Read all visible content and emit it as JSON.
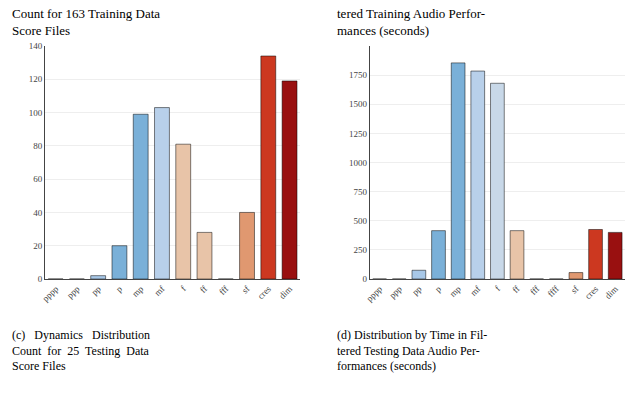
{
  "chart_data": [
    {
      "type": "bar",
      "title": "Count for 163 Training Data\nScore Files",
      "annotations": [
        "(c)   Dynamics   Distribution\nCount  for  25  Testing  Data\nScore Files"
      ],
      "categories": [
        "pppp",
        "ppp",
        "pp",
        "p",
        "mp",
        "mf",
        "f",
        "ff",
        "fff",
        "sf",
        "cres",
        "dim"
      ],
      "values": [
        0,
        0,
        2,
        20,
        99,
        103,
        81,
        28,
        0,
        40,
        134,
        119
      ],
      "colors": [
        "#a8c8e8",
        "#a8c8e8",
        "#a8c8e8",
        "#7ab0d8",
        "#7ab0d8",
        "#b8d0ea",
        "#e8c4a8",
        "#e8c4a8",
        "#e8c4a8",
        "#e09870",
        "#cc3820",
        "#991010"
      ],
      "ylim": [
        0,
        140
      ],
      "yticks": [
        0,
        20,
        40,
        60,
        80,
        100,
        120,
        140
      ],
      "grid": true
    },
    {
      "type": "bar",
      "title": "tered Training Audio Perfor-\nmances (seconds)",
      "annotations": [
        "(d) Distribution by Time in Fil-\ntered Testing Data Audio Per-\nformances (seconds)"
      ],
      "categories": [
        "pppp",
        "ppp",
        "pp",
        "p",
        "mp",
        "mf",
        "f",
        "ff",
        "fff",
        "ffff",
        "sf",
        "cres",
        "dim"
      ],
      "values": [
        0,
        0,
        75,
        415,
        1855,
        1785,
        1680,
        415,
        0,
        0,
        55,
        425,
        400
      ],
      "colors": [
        "#a8c8e8",
        "#a8c8e8",
        "#a8c8e8",
        "#7ab0d8",
        "#7ab0d8",
        "#b8d0ea",
        "#c8d8e8",
        "#e8c4a8",
        "#c8d8e8",
        "#c8d8e8",
        "#e09870",
        "#cc3820",
        "#991010"
      ],
      "ylim": [
        0,
        2000
      ],
      "yticks": [
        0,
        250,
        500,
        750,
        1000,
        1250,
        1500,
        1750
      ],
      "grid": true
    }
  ]
}
